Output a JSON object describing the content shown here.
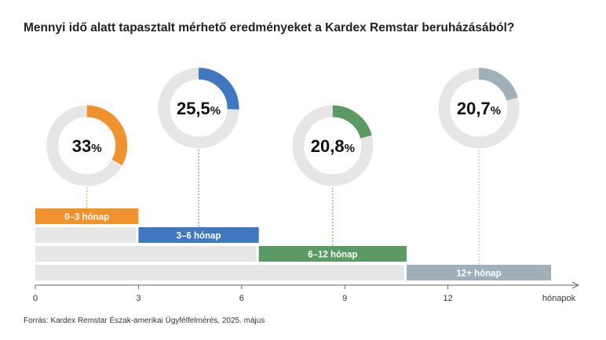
{
  "title": "Mennyi idő alatt tapasztalt mérhető eredményeket a Kardex Remstar beruházásából?",
  "source": "Forrás: Kardex Remstar Észak-amerikai Ügyfélfelmérés, 2025. május",
  "colors": {
    "track": "#e6e6e6",
    "axis": "#666666"
  },
  "chart_data": {
    "type": "timeline-donut",
    "title": "Mennyi idő alatt tapasztalt mérhető eredményeket a Kardex Remstar beruházásából?",
    "xlabel": "hónapok",
    "xlim": [
      0,
      15
    ],
    "xticks": [
      0,
      3,
      6,
      9,
      12
    ],
    "xtick_labels": [
      "0",
      "3",
      "6",
      "9",
      "12"
    ],
    "categories": [
      "0–3 hónap",
      "3–6 hónap",
      "6–12 hónap",
      "12+ hónap"
    ],
    "values": [
      33,
      25.5,
      20.8,
      20.7
    ],
    "value_labels": [
      "33",
      "25,5",
      "20,8",
      "20,7"
    ],
    "unit": "%",
    "series": [
      {
        "label": "0–3 hónap",
        "start": 0,
        "end": 3,
        "value": 33,
        "value_label": "33",
        "color": "#f0922e"
      },
      {
        "label": "3–6 hónap",
        "start": 3,
        "end": 6.5,
        "value": 25.5,
        "value_label": "25,5",
        "color": "#3f78bf"
      },
      {
        "label": "6–12 hónap",
        "start": 6.5,
        "end": 10.8,
        "value": 20.8,
        "value_label": "20,8",
        "color": "#5b9b63"
      },
      {
        "label": "12+ hónap",
        "start": 10.8,
        "end": 15,
        "value": 20.7,
        "value_label": "20,7",
        "color": "#9fb0ba"
      }
    ]
  }
}
